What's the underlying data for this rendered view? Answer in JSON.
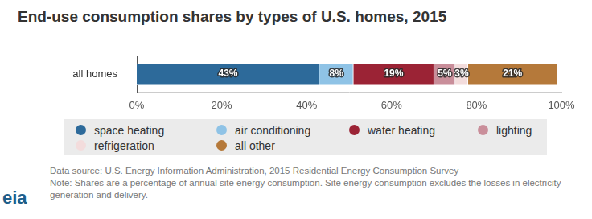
{
  "chart_data": {
    "type": "bar",
    "title": "End-use consumption shares by types of U.S. homes, 2015",
    "orientation": "horizontal",
    "stacked": true,
    "categories": [
      "all homes"
    ],
    "series": [
      {
        "name": "space heating",
        "color": "#2d6a9a",
        "values": [
          43
        ],
        "value_labels": [
          "43%"
        ]
      },
      {
        "name": "air conditioning",
        "color": "#8fc3e6",
        "values": [
          8
        ],
        "value_labels": [
          "8%"
        ]
      },
      {
        "name": "water heating",
        "color": "#9b2335",
        "values": [
          19
        ],
        "value_labels": [
          "19%"
        ]
      },
      {
        "name": "lighting",
        "color": "#c98e9a",
        "values": [
          5
        ],
        "value_labels": [
          "5%"
        ]
      },
      {
        "name": "refrigeration",
        "color": "#f3dcdc",
        "values": [
          3
        ],
        "value_labels": [
          "3%"
        ]
      },
      {
        "name": "all other",
        "color": "#b5793a",
        "values": [
          21
        ],
        "value_labels": [
          "21%"
        ]
      }
    ],
    "xlim": [
      0,
      100
    ],
    "xticks": [
      {
        "value": 0,
        "label": "0%"
      },
      {
        "value": 20,
        "label": "20%"
      },
      {
        "value": 40,
        "label": "40%"
      },
      {
        "value": 60,
        "label": "60%"
      },
      {
        "value": 80,
        "label": "80%"
      },
      {
        "value": 100,
        "label": "100%"
      }
    ],
    "grid": false,
    "data_labels": true,
    "legend": "bottom",
    "source": "Data source: U.S. Energy Information Administration, 2015 Residential Energy Consumption Survey",
    "note": "Note: Shares are a percentage of annual site energy consumption. Site energy consumption excludes the losses in electricity generation and delivery.",
    "logo": "eia"
  }
}
